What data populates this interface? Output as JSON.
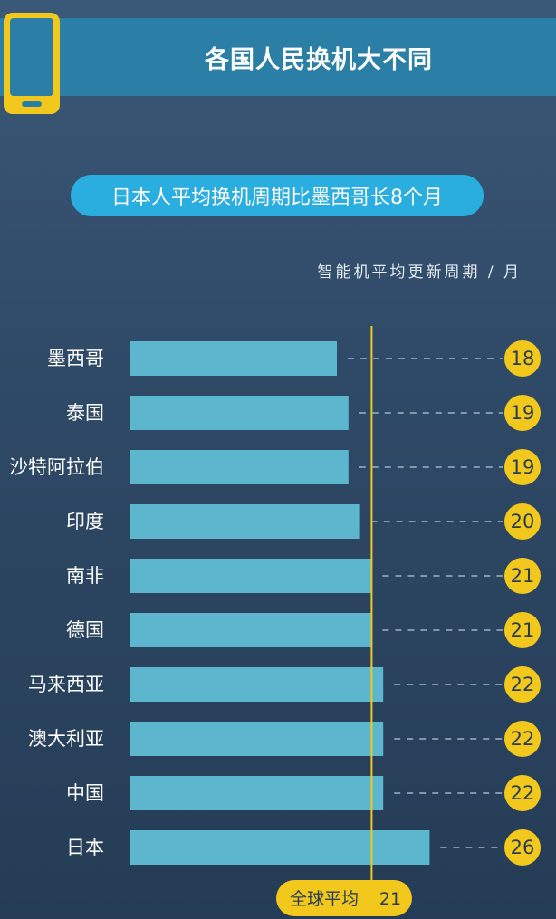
{
  "header": {
    "title": "各国人民换机大不同"
  },
  "subtitle": "日本人平均换机周期比墨西哥长8个月",
  "unit_label": "智能机平均更新周期 / 月",
  "colors": {
    "bar": "#5bb6ce",
    "accent": "#f3c81c",
    "title_bar": "#2b7fa6",
    "pill": "#2aaee0"
  },
  "icons": {
    "header": "smartphone-icon"
  },
  "chart_data": {
    "type": "bar",
    "orientation": "horizontal",
    "categories": [
      "墨西哥",
      "泰国",
      "沙特阿拉伯",
      "印度",
      "南非",
      "德国",
      "马来西亚",
      "澳大利亚",
      "中国",
      "日本"
    ],
    "values": [
      18,
      19,
      19,
      20,
      21,
      21,
      22,
      22,
      22,
      26
    ],
    "value_labels": [
      "18",
      "19",
      "19",
      "20",
      "21",
      "21",
      "22",
      "22",
      "22",
      "26"
    ],
    "reference_line": {
      "label": "全球平均",
      "value": 21,
      "value_label": "21"
    }
  }
}
